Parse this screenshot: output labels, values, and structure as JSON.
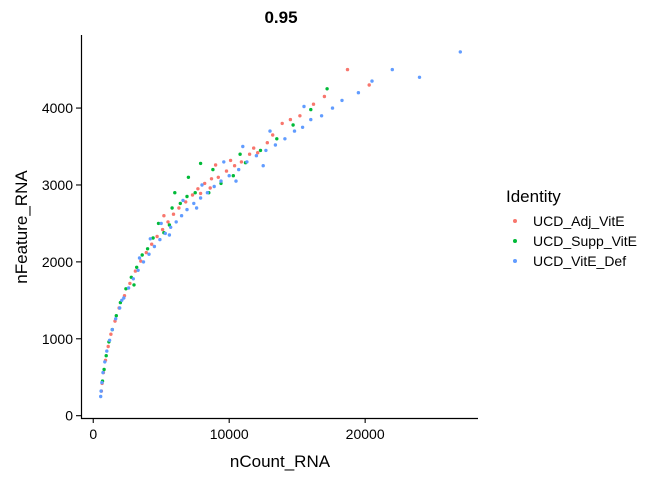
{
  "chart_data": {
    "type": "scatter",
    "title": "0.95",
    "xlabel": "nCount_RNA",
    "ylabel": "nFeature_RNA",
    "xlim": [
      -900,
      28300
    ],
    "ylim": [
      -30,
      4950
    ],
    "xticks": [
      0,
      10000,
      20000
    ],
    "yticks": [
      0,
      1000,
      2000,
      3000,
      4000
    ],
    "grid": false,
    "legend": {
      "title": "Identity",
      "position": "right"
    },
    "series": [
      {
        "name": "UCD_Adj_VitE",
        "color": "#F8766D",
        "points": [
          [
            18700,
            4500
          ],
          [
            20300,
            4300
          ],
          [
            17000,
            4150
          ],
          [
            16200,
            4050
          ],
          [
            15200,
            3900
          ],
          [
            14500,
            3850
          ],
          [
            13900,
            3800
          ],
          [
            13200,
            3650
          ],
          [
            12800,
            3550
          ],
          [
            12100,
            3420
          ],
          [
            11500,
            3400
          ],
          [
            10900,
            3300
          ],
          [
            10400,
            3250
          ],
          [
            9800,
            3180
          ],
          [
            9200,
            3100
          ],
          [
            8700,
            3080
          ],
          [
            8200,
            3020
          ],
          [
            7700,
            2950
          ],
          [
            7300,
            2870
          ],
          [
            6800,
            2780
          ],
          [
            6300,
            2700
          ],
          [
            5900,
            2620
          ],
          [
            5500,
            2520
          ],
          [
            5100,
            2420
          ],
          [
            4700,
            2330
          ],
          [
            4300,
            2230
          ],
          [
            3900,
            2120
          ],
          [
            3500,
            2010
          ],
          [
            3100,
            1880
          ],
          [
            2700,
            1720
          ],
          [
            2300,
            1560
          ],
          [
            1900,
            1400
          ],
          [
            1600,
            1230
          ],
          [
            1300,
            1060
          ],
          [
            1100,
            900
          ],
          [
            900,
            720
          ],
          [
            750,
            560
          ],
          [
            650,
            420
          ],
          [
            600,
            320
          ],
          [
            10100,
            3320
          ],
          [
            11800,
            3480
          ],
          [
            9000,
            3260
          ],
          [
            7900,
            2890
          ],
          [
            8600,
            2960
          ],
          [
            5200,
            2600
          ]
        ]
      },
      {
        "name": "UCD_Supp_VitE",
        "color": "#00BA38",
        "points": [
          [
            17200,
            4250
          ],
          [
            16000,
            3980
          ],
          [
            14700,
            3780
          ],
          [
            13500,
            3600
          ],
          [
            12300,
            3450
          ],
          [
            11200,
            3290
          ],
          [
            10300,
            3120
          ],
          [
            9400,
            3020
          ],
          [
            8800,
            3200
          ],
          [
            7900,
            3280
          ],
          [
            7500,
            2900
          ],
          [
            6900,
            2850
          ],
          [
            6400,
            2760
          ],
          [
            6000,
            2900
          ],
          [
            5600,
            2480
          ],
          [
            5200,
            2380
          ],
          [
            4800,
            2500
          ],
          [
            4400,
            2310
          ],
          [
            4000,
            2170
          ],
          [
            3600,
            2090
          ],
          [
            3200,
            1930
          ],
          [
            2800,
            1800
          ],
          [
            2400,
            1650
          ],
          [
            2000,
            1470
          ],
          [
            1700,
            1300
          ],
          [
            1400,
            1120
          ],
          [
            1150,
            960
          ],
          [
            950,
            780
          ],
          [
            800,
            600
          ],
          [
            680,
            450
          ],
          [
            8500,
            2900
          ],
          [
            7000,
            3100
          ],
          [
            5800,
            2700
          ],
          [
            10800,
            3400
          ],
          [
            3000,
            1700
          ]
        ]
      },
      {
        "name": "UCD_VitE_Def",
        "color": "#619CFF",
        "points": [
          [
            27000,
            4730
          ],
          [
            22000,
            4500
          ],
          [
            24000,
            4400
          ],
          [
            20500,
            4350
          ],
          [
            19500,
            4200
          ],
          [
            18300,
            4100
          ],
          [
            17600,
            4000
          ],
          [
            16800,
            3900
          ],
          [
            16000,
            3850
          ],
          [
            15400,
            3750
          ],
          [
            14800,
            3700
          ],
          [
            14100,
            3600
          ],
          [
            13400,
            3520
          ],
          [
            12700,
            3450
          ],
          [
            12000,
            3380
          ],
          [
            11300,
            3300
          ],
          [
            10700,
            3200
          ],
          [
            10000,
            3120
          ],
          [
            9400,
            3050
          ],
          [
            8900,
            2980
          ],
          [
            8400,
            2900
          ],
          [
            7900,
            2830
          ],
          [
            7400,
            2760
          ],
          [
            6900,
            2680
          ],
          [
            6500,
            2600
          ],
          [
            6100,
            2520
          ],
          [
            5700,
            2450
          ],
          [
            5300,
            2370
          ],
          [
            4900,
            2290
          ],
          [
            4500,
            2200
          ],
          [
            4100,
            2100
          ],
          [
            3700,
            2000
          ],
          [
            3300,
            1890
          ],
          [
            2950,
            1780
          ],
          [
            2600,
            1660
          ],
          [
            2250,
            1530
          ],
          [
            1950,
            1400
          ],
          [
            1650,
            1260
          ],
          [
            1400,
            1120
          ],
          [
            1200,
            980
          ],
          [
            1000,
            840
          ],
          [
            850,
            700
          ],
          [
            720,
            560
          ],
          [
            640,
            430
          ],
          [
            580,
            320
          ],
          [
            550,
            250
          ],
          [
            15500,
            4020
          ],
          [
            13000,
            3700
          ],
          [
            11000,
            3500
          ],
          [
            9600,
            3300
          ],
          [
            8000,
            3000
          ],
          [
            6600,
            2800
          ],
          [
            5000,
            2500
          ],
          [
            4200,
            2300
          ],
          [
            3400,
            2050
          ],
          [
            2100,
            1500
          ],
          [
            12500,
            3250
          ],
          [
            10500,
            3050
          ],
          [
            7600,
            2700
          ],
          [
            5600,
            2350
          ]
        ]
      }
    ]
  }
}
